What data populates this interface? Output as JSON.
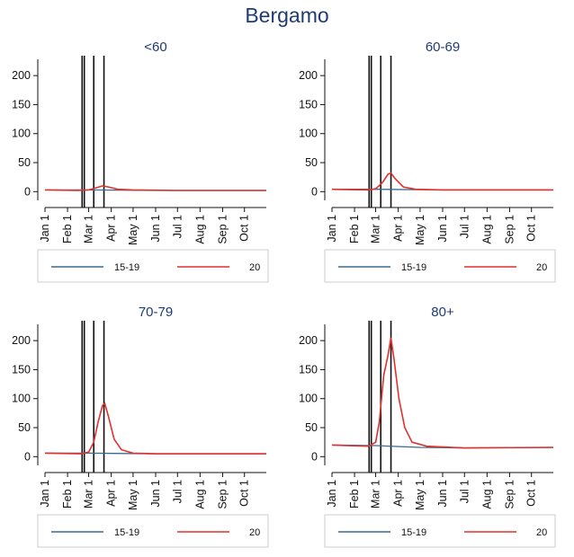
{
  "figure_title": "Bergamo",
  "colors": {
    "baseline": "#3a6a8c",
    "2020": "#e03030",
    "axis": "#111111",
    "vline": "#111111",
    "title": "#1f3b73"
  },
  "chart_data": [
    {
      "type": "line",
      "title": "<60",
      "x_ticks": [
        "Jan 1",
        "Feb 1",
        "Mar 1",
        "Apr 1",
        "May 1",
        "Jun 1",
        "Jul 1",
        "Aug 1",
        "Sep 1",
        "Oct 1"
      ],
      "x_range": [
        "2020-01-01",
        "2020-10-31"
      ],
      "y_ticks": [
        0,
        50,
        100,
        150,
        200
      ],
      "ylim": [
        -15,
        225
      ],
      "event_dates": [
        "2020-02-21",
        "2020-02-24",
        "2020-03-08",
        "2020-03-22"
      ],
      "legend": [
        "15-19",
        "20"
      ],
      "legend_position": "bottom",
      "series": [
        {
          "name": "15-19",
          "points": [
            [
              "2020-01-01",
              3
            ],
            [
              "2020-03-01",
              3
            ],
            [
              "2020-06-01",
              2
            ],
            [
              "2020-10-31",
              2
            ]
          ]
        },
        {
          "name": "20",
          "points": [
            [
              "2020-01-01",
              3
            ],
            [
              "2020-02-15",
              2
            ],
            [
              "2020-03-01",
              3
            ],
            [
              "2020-03-10",
              6
            ],
            [
              "2020-03-20",
              10
            ],
            [
              "2020-03-28",
              8
            ],
            [
              "2020-04-10",
              4
            ],
            [
              "2020-05-01",
              3
            ],
            [
              "2020-07-01",
              2
            ],
            [
              "2020-10-31",
              2
            ]
          ]
        }
      ]
    },
    {
      "type": "line",
      "title": "60-69",
      "x_ticks": [
        "Jan 1",
        "Feb 1",
        "Mar 1",
        "Apr 1",
        "May 1",
        "Jun 1",
        "Jul 1",
        "Aug 1",
        "Sep 1",
        "Oct 1"
      ],
      "x_range": [
        "2020-01-01",
        "2020-10-31"
      ],
      "y_ticks": [
        0,
        50,
        100,
        150,
        200
      ],
      "ylim": [
        -15,
        225
      ],
      "event_dates": [
        "2020-02-21",
        "2020-02-24",
        "2020-03-08",
        "2020-03-22"
      ],
      "legend": [
        "15-19",
        "20"
      ],
      "legend_position": "bottom",
      "series": [
        {
          "name": "15-19",
          "points": [
            [
              "2020-01-01",
              4
            ],
            [
              "2020-03-01",
              4
            ],
            [
              "2020-06-01",
              3
            ],
            [
              "2020-10-31",
              3
            ]
          ]
        },
        {
          "name": "20",
          "points": [
            [
              "2020-01-01",
              4
            ],
            [
              "2020-02-20",
              3
            ],
            [
              "2020-03-01",
              5
            ],
            [
              "2020-03-10",
              15
            ],
            [
              "2020-03-18",
              30
            ],
            [
              "2020-03-22",
              32
            ],
            [
              "2020-03-28",
              22
            ],
            [
              "2020-04-08",
              8
            ],
            [
              "2020-04-25",
              4
            ],
            [
              "2020-06-01",
              3
            ],
            [
              "2020-10-31",
              3
            ]
          ]
        }
      ]
    },
    {
      "type": "line",
      "title": "70-79",
      "x_ticks": [
        "Jan 1",
        "Feb 1",
        "Mar 1",
        "Apr 1",
        "May 1",
        "Jun 1",
        "Jul 1",
        "Aug 1",
        "Sep 1",
        "Oct 1"
      ],
      "x_range": [
        "2020-01-01",
        "2020-10-31"
      ],
      "y_ticks": [
        0,
        50,
        100,
        150,
        200
      ],
      "ylim": [
        -15,
        225
      ],
      "event_dates": [
        "2020-02-21",
        "2020-02-24",
        "2020-03-08",
        "2020-03-22"
      ],
      "legend": [
        "15-19",
        "20"
      ],
      "legend_position": "bottom",
      "series": [
        {
          "name": "15-19",
          "points": [
            [
              "2020-01-01",
              6
            ],
            [
              "2020-03-01",
              6
            ],
            [
              "2020-06-01",
              5
            ],
            [
              "2020-10-31",
              5
            ]
          ]
        },
        {
          "name": "20",
          "points": [
            [
              "2020-01-01",
              6
            ],
            [
              "2020-02-20",
              5
            ],
            [
              "2020-03-01",
              8
            ],
            [
              "2020-03-08",
              25
            ],
            [
              "2020-03-14",
              60
            ],
            [
              "2020-03-20",
              88
            ],
            [
              "2020-03-23",
              92
            ],
            [
              "2020-03-28",
              70
            ],
            [
              "2020-04-05",
              30
            ],
            [
              "2020-04-15",
              12
            ],
            [
              "2020-05-01",
              6
            ],
            [
              "2020-06-01",
              5
            ],
            [
              "2020-10-31",
              5
            ]
          ]
        }
      ]
    },
    {
      "type": "line",
      "title": "80+",
      "x_ticks": [
        "Jan 1",
        "Feb 1",
        "Mar 1",
        "Apr 1",
        "May 1",
        "Jun 1",
        "Jul 1",
        "Aug 1",
        "Sep 1",
        "Oct 1"
      ],
      "x_range": [
        "2020-01-01",
        "2020-10-31"
      ],
      "y_ticks": [
        0,
        50,
        100,
        150,
        200
      ],
      "ylim": [
        -15,
        225
      ],
      "event_dates": [
        "2020-02-21",
        "2020-02-24",
        "2020-03-08",
        "2020-03-22"
      ],
      "legend": [
        "15-19",
        "20"
      ],
      "legend_position": "bottom",
      "series": [
        {
          "name": "15-19",
          "points": [
            [
              "2020-01-01",
              20
            ],
            [
              "2020-03-01",
              19
            ],
            [
              "2020-05-01",
              16
            ],
            [
              "2020-07-01",
              15
            ],
            [
              "2020-10-31",
              16
            ]
          ]
        },
        {
          "name": "20",
          "points": [
            [
              "2020-01-01",
              20
            ],
            [
              "2020-02-20",
              18
            ],
            [
              "2020-03-01",
              25
            ],
            [
              "2020-03-06",
              60
            ],
            [
              "2020-03-12",
              140
            ],
            [
              "2020-03-18",
              175
            ],
            [
              "2020-03-22",
              205
            ],
            [
              "2020-03-26",
              170
            ],
            [
              "2020-04-02",
              100
            ],
            [
              "2020-04-10",
              50
            ],
            [
              "2020-04-20",
              25
            ],
            [
              "2020-05-10",
              18
            ],
            [
              "2020-07-01",
              15
            ],
            [
              "2020-10-31",
              16
            ]
          ]
        }
      ]
    }
  ]
}
